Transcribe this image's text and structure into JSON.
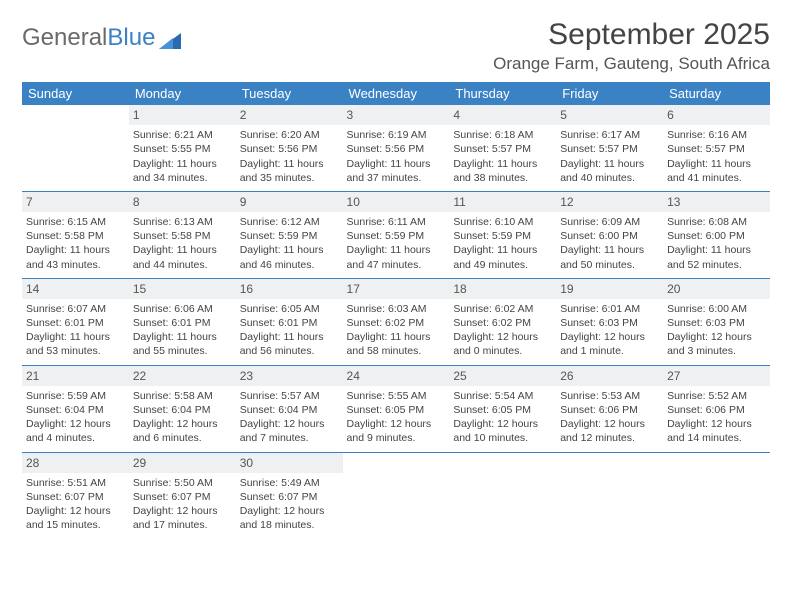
{
  "logo": {
    "part1": "General",
    "part2": "Blue"
  },
  "title": "September 2025",
  "location": "Orange Farm, Gauteng, South Africa",
  "colors": {
    "header_bg": "#3b82c4",
    "header_text": "#ffffff",
    "daynum_bg": "#eef0f1",
    "border": "#3b82c4",
    "text": "#444444",
    "logo_gray": "#6a6a6a",
    "logo_blue": "#3b82c4"
  },
  "day_headers": [
    "Sunday",
    "Monday",
    "Tuesday",
    "Wednesday",
    "Thursday",
    "Friday",
    "Saturday"
  ],
  "weeks": [
    [
      {
        "day": "",
        "sunrise": "",
        "sunset": "",
        "daylight": ""
      },
      {
        "day": "1",
        "sunrise": "Sunrise: 6:21 AM",
        "sunset": "Sunset: 5:55 PM",
        "daylight": "Daylight: 11 hours and 34 minutes."
      },
      {
        "day": "2",
        "sunrise": "Sunrise: 6:20 AM",
        "sunset": "Sunset: 5:56 PM",
        "daylight": "Daylight: 11 hours and 35 minutes."
      },
      {
        "day": "3",
        "sunrise": "Sunrise: 6:19 AM",
        "sunset": "Sunset: 5:56 PM",
        "daylight": "Daylight: 11 hours and 37 minutes."
      },
      {
        "day": "4",
        "sunrise": "Sunrise: 6:18 AM",
        "sunset": "Sunset: 5:57 PM",
        "daylight": "Daylight: 11 hours and 38 minutes."
      },
      {
        "day": "5",
        "sunrise": "Sunrise: 6:17 AM",
        "sunset": "Sunset: 5:57 PM",
        "daylight": "Daylight: 11 hours and 40 minutes."
      },
      {
        "day": "6",
        "sunrise": "Sunrise: 6:16 AM",
        "sunset": "Sunset: 5:57 PM",
        "daylight": "Daylight: 11 hours and 41 minutes."
      }
    ],
    [
      {
        "day": "7",
        "sunrise": "Sunrise: 6:15 AM",
        "sunset": "Sunset: 5:58 PM",
        "daylight": "Daylight: 11 hours and 43 minutes."
      },
      {
        "day": "8",
        "sunrise": "Sunrise: 6:13 AM",
        "sunset": "Sunset: 5:58 PM",
        "daylight": "Daylight: 11 hours and 44 minutes."
      },
      {
        "day": "9",
        "sunrise": "Sunrise: 6:12 AM",
        "sunset": "Sunset: 5:59 PM",
        "daylight": "Daylight: 11 hours and 46 minutes."
      },
      {
        "day": "10",
        "sunrise": "Sunrise: 6:11 AM",
        "sunset": "Sunset: 5:59 PM",
        "daylight": "Daylight: 11 hours and 47 minutes."
      },
      {
        "day": "11",
        "sunrise": "Sunrise: 6:10 AM",
        "sunset": "Sunset: 5:59 PM",
        "daylight": "Daylight: 11 hours and 49 minutes."
      },
      {
        "day": "12",
        "sunrise": "Sunrise: 6:09 AM",
        "sunset": "Sunset: 6:00 PM",
        "daylight": "Daylight: 11 hours and 50 minutes."
      },
      {
        "day": "13",
        "sunrise": "Sunrise: 6:08 AM",
        "sunset": "Sunset: 6:00 PM",
        "daylight": "Daylight: 11 hours and 52 minutes."
      }
    ],
    [
      {
        "day": "14",
        "sunrise": "Sunrise: 6:07 AM",
        "sunset": "Sunset: 6:01 PM",
        "daylight": "Daylight: 11 hours and 53 minutes."
      },
      {
        "day": "15",
        "sunrise": "Sunrise: 6:06 AM",
        "sunset": "Sunset: 6:01 PM",
        "daylight": "Daylight: 11 hours and 55 minutes."
      },
      {
        "day": "16",
        "sunrise": "Sunrise: 6:05 AM",
        "sunset": "Sunset: 6:01 PM",
        "daylight": "Daylight: 11 hours and 56 minutes."
      },
      {
        "day": "17",
        "sunrise": "Sunrise: 6:03 AM",
        "sunset": "Sunset: 6:02 PM",
        "daylight": "Daylight: 11 hours and 58 minutes."
      },
      {
        "day": "18",
        "sunrise": "Sunrise: 6:02 AM",
        "sunset": "Sunset: 6:02 PM",
        "daylight": "Daylight: 12 hours and 0 minutes."
      },
      {
        "day": "19",
        "sunrise": "Sunrise: 6:01 AM",
        "sunset": "Sunset: 6:03 PM",
        "daylight": "Daylight: 12 hours and 1 minute."
      },
      {
        "day": "20",
        "sunrise": "Sunrise: 6:00 AM",
        "sunset": "Sunset: 6:03 PM",
        "daylight": "Daylight: 12 hours and 3 minutes."
      }
    ],
    [
      {
        "day": "21",
        "sunrise": "Sunrise: 5:59 AM",
        "sunset": "Sunset: 6:04 PM",
        "daylight": "Daylight: 12 hours and 4 minutes."
      },
      {
        "day": "22",
        "sunrise": "Sunrise: 5:58 AM",
        "sunset": "Sunset: 6:04 PM",
        "daylight": "Daylight: 12 hours and 6 minutes."
      },
      {
        "day": "23",
        "sunrise": "Sunrise: 5:57 AM",
        "sunset": "Sunset: 6:04 PM",
        "daylight": "Daylight: 12 hours and 7 minutes."
      },
      {
        "day": "24",
        "sunrise": "Sunrise: 5:55 AM",
        "sunset": "Sunset: 6:05 PM",
        "daylight": "Daylight: 12 hours and 9 minutes."
      },
      {
        "day": "25",
        "sunrise": "Sunrise: 5:54 AM",
        "sunset": "Sunset: 6:05 PM",
        "daylight": "Daylight: 12 hours and 10 minutes."
      },
      {
        "day": "26",
        "sunrise": "Sunrise: 5:53 AM",
        "sunset": "Sunset: 6:06 PM",
        "daylight": "Daylight: 12 hours and 12 minutes."
      },
      {
        "day": "27",
        "sunrise": "Sunrise: 5:52 AM",
        "sunset": "Sunset: 6:06 PM",
        "daylight": "Daylight: 12 hours and 14 minutes."
      }
    ],
    [
      {
        "day": "28",
        "sunrise": "Sunrise: 5:51 AM",
        "sunset": "Sunset: 6:07 PM",
        "daylight": "Daylight: 12 hours and 15 minutes."
      },
      {
        "day": "29",
        "sunrise": "Sunrise: 5:50 AM",
        "sunset": "Sunset: 6:07 PM",
        "daylight": "Daylight: 12 hours and 17 minutes."
      },
      {
        "day": "30",
        "sunrise": "Sunrise: 5:49 AM",
        "sunset": "Sunset: 6:07 PM",
        "daylight": "Daylight: 12 hours and 18 minutes."
      },
      {
        "day": "",
        "sunrise": "",
        "sunset": "",
        "daylight": ""
      },
      {
        "day": "",
        "sunrise": "",
        "sunset": "",
        "daylight": ""
      },
      {
        "day": "",
        "sunrise": "",
        "sunset": "",
        "daylight": ""
      },
      {
        "day": "",
        "sunrise": "",
        "sunset": "",
        "daylight": ""
      }
    ]
  ]
}
